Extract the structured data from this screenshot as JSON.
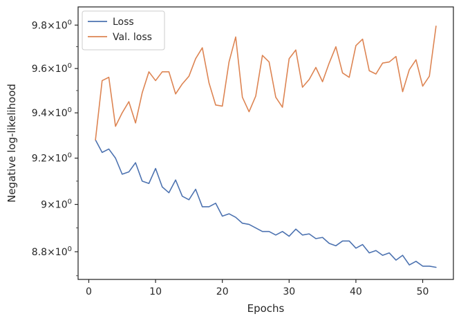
{
  "chart_data": {
    "type": "line",
    "xlabel": "Epochs",
    "ylabel": "Negative log-likelihood",
    "y_scale": "log",
    "xlim": [
      -1.6,
      54.6
    ],
    "ylim": [
      8.685,
      9.885
    ],
    "x_ticks": [
      0,
      10,
      20,
      30,
      40,
      50
    ],
    "x_tick_labels": [
      "0",
      "10",
      "20",
      "30",
      "40",
      "50"
    ],
    "y_ticks": [
      8.8,
      9.0,
      9.2,
      9.4,
      9.6,
      9.8
    ],
    "y_tick_labels": [
      {
        "mantissa": "8.8",
        "base": "10",
        "exp": "0"
      },
      {
        "mantissa": "9",
        "base": "10",
        "exp": "0"
      },
      {
        "mantissa": "9.2",
        "base": "10",
        "exp": "0"
      },
      {
        "mantissa": "9.4",
        "base": "10",
        "exp": "0"
      },
      {
        "mantissa": "9.6",
        "base": "10",
        "exp": "0"
      },
      {
        "mantissa": "9.8",
        "base": "10",
        "exp": "0"
      }
    ],
    "grid": false,
    "legend": "upper-left",
    "x": [
      1,
      2,
      3,
      4,
      5,
      6,
      7,
      8,
      9,
      10,
      11,
      12,
      13,
      14,
      15,
      16,
      17,
      18,
      19,
      20,
      21,
      22,
      23,
      24,
      25,
      26,
      27,
      28,
      29,
      30,
      31,
      32,
      33,
      34,
      35,
      36,
      37,
      38,
      39,
      40,
      41,
      42,
      43,
      44,
      45,
      46,
      47,
      48,
      49,
      50,
      51,
      52
    ],
    "series": [
      {
        "name": "Loss",
        "color": "#4c72b0",
        "values": [
          9.28,
          9.225,
          9.24,
          9.2,
          9.13,
          9.14,
          9.18,
          9.1,
          9.09,
          9.155,
          9.075,
          9.05,
          9.105,
          9.035,
          9.02,
          9.065,
          8.99,
          8.99,
          9.005,
          8.95,
          8.96,
          8.945,
          8.92,
          8.915,
          8.9,
          8.885,
          8.885,
          8.87,
          8.885,
          8.865,
          8.895,
          8.87,
          8.875,
          8.855,
          8.86,
          8.835,
          8.825,
          8.845,
          8.845,
          8.815,
          8.83,
          8.795,
          8.805,
          8.785,
          8.795,
          8.765,
          8.785,
          8.745,
          8.76,
          8.74,
          8.74,
          8.735
        ]
      },
      {
        "name": "Val. loss",
        "color": "#dd8452",
        "values": [
          9.28,
          9.545,
          9.56,
          9.34,
          9.4,
          9.45,
          9.355,
          9.49,
          9.585,
          9.545,
          9.585,
          9.585,
          9.485,
          9.53,
          9.565,
          9.645,
          9.695,
          9.535,
          9.435,
          9.43,
          9.63,
          9.745,
          9.47,
          9.405,
          9.475,
          9.66,
          9.63,
          9.47,
          9.425,
          9.645,
          9.685,
          9.515,
          9.55,
          9.605,
          9.54,
          9.625,
          9.7,
          9.58,
          9.56,
          9.705,
          9.735,
          9.59,
          9.575,
          9.625,
          9.63,
          9.655,
          9.495,
          9.595,
          9.64,
          9.52,
          9.565,
          9.795
        ]
      }
    ]
  }
}
